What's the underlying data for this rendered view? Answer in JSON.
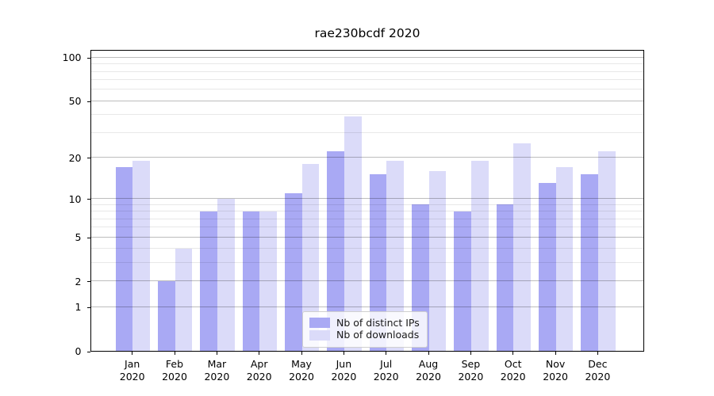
{
  "figure_title": "rae230bcdf 2020",
  "chart_data": {
    "type": "bar",
    "title": "rae230bcdf 2020",
    "categories": [
      "Jan 2020",
      "Feb 2020",
      "Mar 2020",
      "Apr 2020",
      "May 2020",
      "Jun 2020",
      "Jul 2020",
      "Aug 2020",
      "Sep 2020",
      "Oct 2020",
      "Nov 2020",
      "Dec 2020"
    ],
    "series": [
      {
        "name": "Nb of distinct IPs",
        "color": "#a9a9f4",
        "values": [
          17,
          2,
          8,
          8,
          11,
          22,
          15,
          9,
          8,
          9,
          13,
          15
        ]
      },
      {
        "name": "Nb of downloads",
        "color": "#dbdbf9",
        "values": [
          19,
          4,
          10,
          8,
          18,
          39,
          19,
          16,
          19,
          25,
          17,
          22
        ]
      }
    ],
    "xlabel": "",
    "ylabel": "",
    "y_axis": {
      "scale": "log1p",
      "major_ticks": [
        0,
        1,
        2,
        5,
        10,
        20,
        50,
        100
      ],
      "minor_ticks": [
        3,
        4,
        6,
        7,
        8,
        9,
        30,
        40,
        60,
        70,
        80,
        90
      ],
      "ylim": [
        0,
        114
      ]
    },
    "grid": "on (major and minor horizontal gridlines, drawn above bars)",
    "legend": {
      "location": "lower center",
      "entries": [
        "Nb of distinct IPs",
        "Nb of downloads"
      ]
    }
  }
}
